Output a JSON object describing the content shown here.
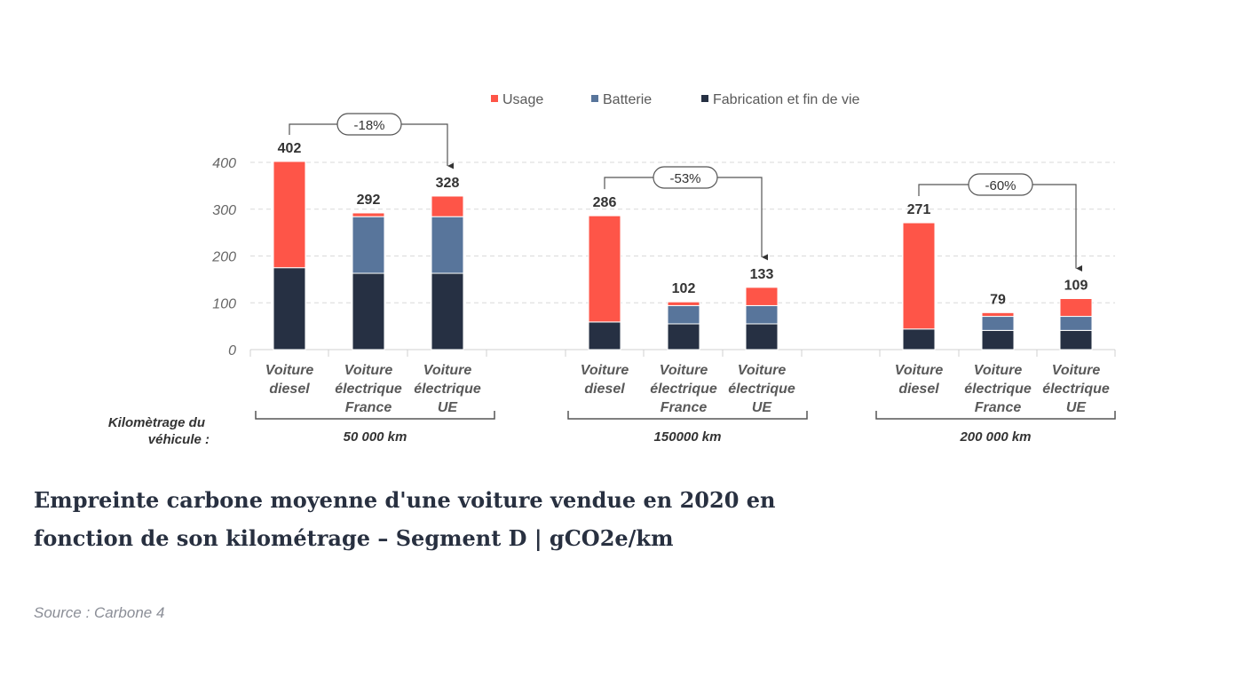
{
  "chart_data": {
    "type": "bar",
    "stacked": true,
    "title": "",
    "ylim": [
      0,
      400
    ],
    "yticks": [
      0,
      100,
      200,
      300,
      400
    ],
    "grid": true,
    "legend_position": "top-center",
    "series": [
      {
        "name": "Usage",
        "color": "#fe5548"
      },
      {
        "name": "Batterie",
        "color": "#58759b"
      },
      {
        "name": "Fabrication et fin de vie",
        "color": "#263043"
      }
    ],
    "row_label": "Kilomètrage du véhicule :",
    "groups": [
      {
        "label": "50 000 km",
        "comparison": "-18%",
        "bars": [
          {
            "category": "Voiture diesel",
            "total": 402,
            "usage": 227,
            "batterie": 0,
            "fabrication": 175
          },
          {
            "category": "Voiture électrique France",
            "total": 292,
            "usage": 8,
            "batterie": 121,
            "fabrication": 163
          },
          {
            "category": "Voiture électrique UE",
            "total": 328,
            "usage": 44,
            "batterie": 121,
            "fabrication": 163
          }
        ]
      },
      {
        "label": "150000 km",
        "comparison": "-53%",
        "bars": [
          {
            "category": "Voiture diesel",
            "total": 286,
            "usage": 227,
            "batterie": 0,
            "fabrication": 59
          },
          {
            "category": "Voiture électrique France",
            "total": 102,
            "usage": 8,
            "batterie": 39,
            "fabrication": 55
          },
          {
            "category": "Voiture électrique UE",
            "total": 133,
            "usage": 39,
            "batterie": 39,
            "fabrication": 55
          }
        ]
      },
      {
        "label": "200 000 km",
        "comparison": "-60%",
        "bars": [
          {
            "category": "Voiture diesel",
            "total": 271,
            "usage": 227,
            "batterie": 0,
            "fabrication": 44
          },
          {
            "category": "Voiture électrique France",
            "total": 79,
            "usage": 8,
            "batterie": 30,
            "fabrication": 41
          },
          {
            "category": "Voiture électrique UE",
            "total": 109,
            "usage": 38,
            "batterie": 30,
            "fabrication": 41
          }
        ]
      }
    ]
  },
  "caption": {
    "title": "Empreinte carbone moyenne d'une voiture vendue en 2020 en fonction de son kilométrage – Segment D | gCO2e/km",
    "source": "Source : Carbone 4"
  }
}
